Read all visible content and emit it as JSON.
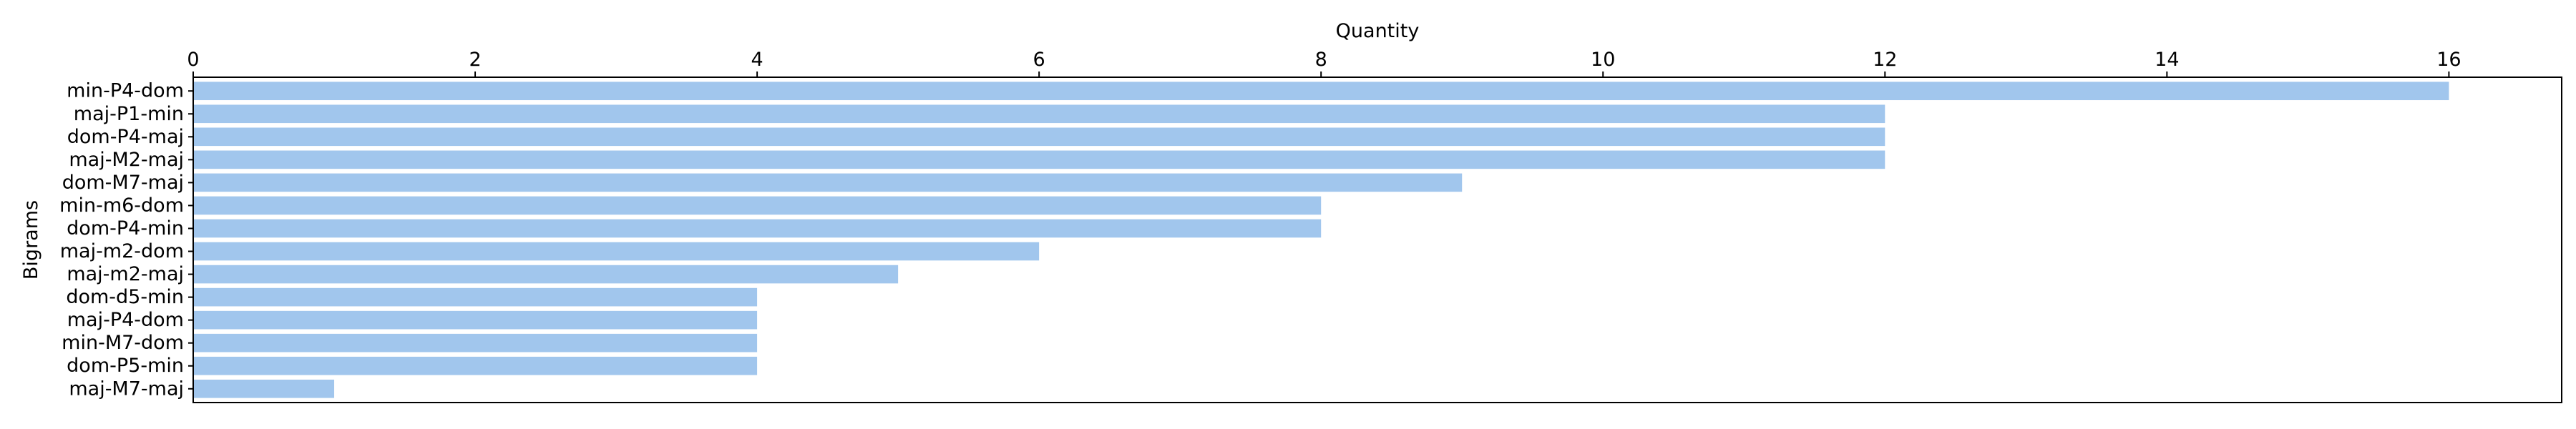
{
  "chart_data": {
    "type": "bar",
    "orientation": "horizontal",
    "title": "",
    "xlabel": "Quantity",
    "ylabel": "Bigrams",
    "x_axis_position": "top",
    "xlim": [
      0,
      16.8
    ],
    "xticks": [
      0,
      2,
      4,
      6,
      8,
      10,
      12,
      14,
      16
    ],
    "grid": false,
    "legend": "none",
    "bar_color": "#a1c6ed",
    "categories": [
      "min-P4-dom",
      "maj-P1-min",
      "dom-P4-maj",
      "maj-M2-maj",
      "dom-M7-maj",
      "min-m6-dom",
      "dom-P4-min",
      "maj-m2-dom",
      "maj-m2-maj",
      "dom-d5-min",
      "maj-P4-dom",
      "min-M7-dom",
      "dom-P5-min",
      "maj-M7-maj"
    ],
    "values": [
      16,
      12,
      12,
      12,
      9,
      8,
      8,
      6,
      5,
      4,
      4,
      4,
      4,
      1
    ]
  }
}
